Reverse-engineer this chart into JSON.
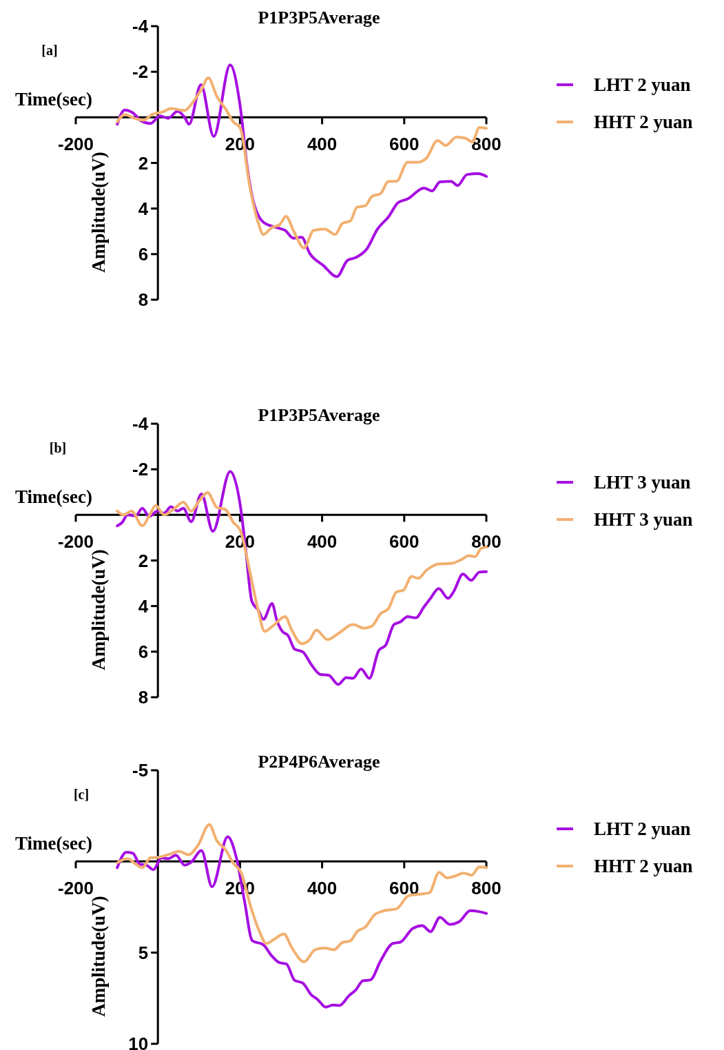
{
  "chart_data": [
    {
      "type": "line",
      "title": "P1P3P5Average",
      "xlabel": "Time(sec)",
      "ylabel": "Amplitude(uV)",
      "annotations": [
        "[a]"
      ],
      "xlim": [
        -200,
        800
      ],
      "xticks": [
        -200,
        200,
        400,
        600,
        800
      ],
      "ylim": [
        8,
        -4
      ],
      "yticks": [
        -4,
        -2,
        2,
        4,
        6,
        8
      ],
      "grid": false,
      "legend": "right",
      "line_style": "solid",
      "marker": "none",
      "series": [
        {
          "name": "LHT 2 yuan",
          "color": "#a60ee2",
          "x": [
            -99,
            -81,
            -61,
            -41,
            -18,
            5,
            25,
            48,
            65,
            76,
            105,
            136,
            176,
            201,
            217,
            230,
            257,
            290,
            310,
            330,
            350,
            370,
            403,
            436,
            462,
            482,
            509,
            535,
            562,
            585,
            608,
            648,
            668,
            687,
            714,
            730,
            753,
            780,
            800
          ],
          "values": [
            0.3,
            -0.32,
            -0.2,
            0.15,
            0.27,
            -0.06,
            0.04,
            -0.27,
            0,
            0.3,
            -1.43,
            0.84,
            -2.3,
            -0.42,
            2.1,
            3.5,
            4.6,
            4.84,
            4.96,
            5.3,
            5.26,
            5.97,
            6.5,
            6.99,
            6.27,
            6.15,
            5.77,
            4.9,
            4.36,
            3.74,
            3.58,
            3.1,
            3.23,
            2.83,
            2.81,
            2.99,
            2.51,
            2.47,
            2.59
          ]
        },
        {
          "name": "HHT 2 yuan",
          "color": "#f2b070",
          "x": [
            -99,
            -81,
            -54,
            -34,
            -15,
            12,
            32,
            65,
            85,
            105,
            123,
            144,
            164,
            184,
            201,
            224,
            244,
            257,
            277,
            297,
            312,
            330,
            356,
            379,
            406,
            432,
            449,
            469,
            485,
            505,
            522,
            542,
            562,
            581,
            608,
            634,
            654,
            681,
            701,
            727,
            750,
            766,
            783,
            800
          ],
          "values": [
            0.2,
            -0.12,
            0.06,
            0.12,
            -0.12,
            -0.24,
            -0.39,
            -0.3,
            -0.66,
            -1.19,
            -1.73,
            -0.9,
            -0.39,
            0.2,
            0.48,
            3.05,
            4.6,
            5.14,
            4.84,
            4.7,
            4.34,
            4.96,
            5.73,
            4.96,
            4.9,
            5.14,
            4.66,
            4.54,
            3.94,
            3.88,
            3.46,
            3.35,
            2.81,
            2.81,
            1.97,
            1.97,
            1.79,
            1.02,
            1.23,
            0.87,
            0.92,
            1.08,
            0.44,
            0.48
          ]
        }
      ]
    },
    {
      "type": "line",
      "title": "P1P3P5Average",
      "xlabel": "Time(sec)",
      "ylabel": "Amplitude(uV)",
      "annotations": [
        "[b]"
      ],
      "xlim": [
        -200,
        800
      ],
      "xticks": [
        -200,
        200,
        400,
        600,
        800
      ],
      "ylim": [
        8,
        -4
      ],
      "yticks": [
        -4,
        -2,
        2,
        4,
        6,
        8
      ],
      "grid": false,
      "legend": "right",
      "line_style": "solid",
      "marker": "none",
      "series": [
        {
          "name": "LHT 3 yuan",
          "color": "#a60ee2",
          "x": [
            -99,
            -87,
            -74,
            -54,
            -38,
            -21,
            -1,
            15,
            32,
            48,
            62,
            81,
            106,
            134,
            176,
            201,
            214,
            229,
            244,
            257,
            278,
            290,
            303,
            317,
            333,
            353,
            373,
            396,
            416,
            439,
            459,
            475,
            495,
            515,
            538,
            555,
            575,
            591,
            608,
            628,
            648,
            664,
            684,
            707,
            720,
            743,
            763,
            783,
            800
          ],
          "values": [
            0.48,
            0.33,
            0,
            0.04,
            -0.29,
            0.07,
            -0.17,
            -0.08,
            -0.36,
            -0.17,
            -0.29,
            0.3,
            -0.92,
            0.72,
            -1.91,
            -0.38,
            1.53,
            3.8,
            4.16,
            4.58,
            3.89,
            4.64,
            5.11,
            5.29,
            5.89,
            6.01,
            6.55,
            7.0,
            7.03,
            7.44,
            7.14,
            7.17,
            6.76,
            7.17,
            5.95,
            5.71,
            4.81,
            4.69,
            4.46,
            4.52,
            4.04,
            3.66,
            3.23,
            3.66,
            3.38,
            2.6,
            2.87,
            2.51,
            2.49
          ]
        },
        {
          "name": "HHT 3 yuan",
          "color": "#f2b070",
          "x": [
            -99,
            -84,
            -64,
            -38,
            -21,
            -5,
            15,
            38,
            62,
            81,
            101,
            121,
            144,
            164,
            184,
            201,
            224,
            244,
            260,
            280,
            310,
            326,
            350,
            370,
            386,
            413,
            439,
            475,
            502,
            522,
            542,
            562,
            581,
            598,
            618,
            634,
            654,
            684,
            714,
            740,
            757,
            773,
            787,
            800
          ],
          "values": [
            -0.17,
            0,
            -0.17,
            0.48,
            0.04,
            -0.41,
            0,
            -0.24,
            -0.56,
            -0.17,
            -0.62,
            -0.98,
            -0.32,
            -0.24,
            0.33,
            0.69,
            2.49,
            4.16,
            5.11,
            4.87,
            4.46,
            5.05,
            5.65,
            5.47,
            5.05,
            5.47,
            5.21,
            4.81,
            4.97,
            4.87,
            4.34,
            4.1,
            3.38,
            3.3,
            2.7,
            2.78,
            2.43,
            2.15,
            2.13,
            1.95,
            1.79,
            1.83,
            1.47,
            1.41
          ]
        }
      ]
    },
    {
      "type": "line",
      "title": "P2P4P6Average",
      "xlabel": "Time(sec)",
      "ylabel": "Amplitude(uV)",
      "annotations": [
        "[c]"
      ],
      "xlim": [
        -200,
        800
      ],
      "xticks": [
        -200,
        200,
        400,
        600,
        800
      ],
      "ylim": [
        10,
        -5
      ],
      "yticks": [
        -5,
        5,
        10
      ],
      "grid": false,
      "legend": "right",
      "line_style": "solid",
      "marker": "none",
      "series": [
        {
          "name": "LHT 2 yuan",
          "color": "#a60ee2",
          "x": [
            -99,
            -77,
            -61,
            -44,
            -28,
            -11,
            9,
            25,
            44,
            65,
            81,
            106,
            132,
            170,
            191,
            211,
            230,
            257,
            277,
            296,
            313,
            333,
            353,
            373,
            389,
            409,
            426,
            442,
            466,
            482,
            499,
            518,
            542,
            572,
            591,
            621,
            644,
            664,
            687,
            711,
            734,
            761,
            780,
            800
          ],
          "values": [
            0.34,
            -0.5,
            -0.45,
            0.15,
            0.2,
            0.45,
            -0.2,
            -0.15,
            -0.34,
            0.2,
            0.04,
            -0.6,
            1.39,
            -1.35,
            -0.22,
            2.17,
            4.35,
            4.57,
            5.17,
            5.55,
            5.62,
            6.52,
            6.67,
            7.3,
            7.57,
            7.99,
            7.87,
            7.9,
            7.35,
            7.05,
            6.55,
            6.49,
            5.47,
            4.5,
            4.42,
            3.67,
            3.52,
            3.85,
            3.07,
            3.45,
            3.3,
            2.7,
            2.74,
            2.85
          ]
        },
        {
          "name": "HHT 2 yuan",
          "color": "#f2b070",
          "x": [
            -99,
            -74,
            -54,
            -38,
            -18,
            -1,
            25,
            52,
            75,
            98,
            125,
            144,
            164,
            184,
            204,
            224,
            247,
            264,
            283,
            307,
            326,
            356,
            383,
            406,
            429,
            449,
            469,
            485,
            505,
            528,
            552,
            581,
            611,
            634,
            661,
            685,
            704,
            724,
            744,
            764,
            783,
            800
          ],
          "values": [
            0.07,
            -0.15,
            0.15,
            0.34,
            -0.2,
            -0.22,
            -0.37,
            -0.55,
            -0.37,
            -0.9,
            -2.02,
            -1.12,
            -0.67,
            0.1,
            0.67,
            2.32,
            3.82,
            4.5,
            4.27,
            3.97,
            4.72,
            5.5,
            4.84,
            4.75,
            4.84,
            4.45,
            4.35,
            3.85,
            3.6,
            2.92,
            2.7,
            2.6,
            1.87,
            1.8,
            1.72,
            0.6,
            0.9,
            0.8,
            0.64,
            0.75,
            0.3,
            0.34
          ]
        }
      ]
    }
  ]
}
